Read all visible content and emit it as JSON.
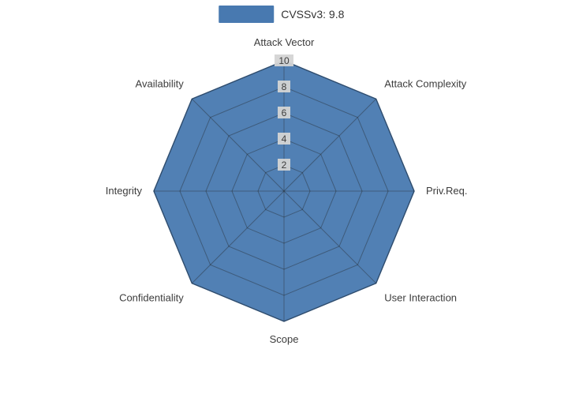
{
  "chart_data": {
    "type": "radar",
    "title": "",
    "legend": [
      {
        "label": "CVSSv3: 9.8",
        "color": "#4879b0"
      }
    ],
    "categories": [
      "Attack Vector",
      "Attack Complexity",
      "Priv.Req.",
      "User Interaction",
      "Scope",
      "Confidentiality",
      "Integrity",
      "Availability"
    ],
    "series": [
      {
        "name": "CVSSv3: 9.8",
        "values": [
          10,
          10,
          10,
          10,
          10,
          10,
          10,
          10
        ]
      }
    ],
    "radial_ticks": [
      2,
      4,
      6,
      8,
      10
    ],
    "rlim": [
      0,
      10
    ],
    "grid": true,
    "legend_position": "top"
  },
  "colors": {
    "series_fill": "#4879b0",
    "series_border": "#3a6391",
    "grid_line": "#1f1f1f",
    "tick_bg": "#d4d4d4",
    "tick_text": "#3c3c3c",
    "axis_label_text": "#3c3c3c",
    "background": "#ffffff"
  }
}
